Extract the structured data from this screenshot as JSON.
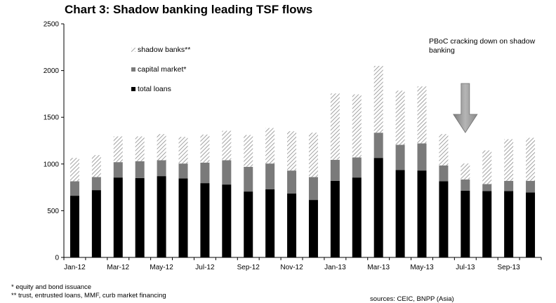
{
  "title": "Chart 3: Shadow banking leading TSF flows",
  "chart_data": {
    "type": "bar",
    "stacked": true,
    "categories": [
      "Jan-12",
      "Feb-12",
      "Mar-12",
      "Apr-12",
      "May-12",
      "Jun-12",
      "Jul-12",
      "Aug-12",
      "Sep-12",
      "Oct-12",
      "Nov-12",
      "Dec-12",
      "Jan-13",
      "Feb-13",
      "Mar-13",
      "Apr-13",
      "May-13",
      "Jun-13",
      "Jul-13",
      "Aug-13",
      "Sep-13",
      "Oct-13"
    ],
    "x_tick_labels": [
      "Jan-12",
      "Mar-12",
      "May-12",
      "Jul-12",
      "Sep-12",
      "Nov-12",
      "Jan-13",
      "Mar-13",
      "May-13",
      "Jul-13",
      "Sep-13"
    ],
    "series": [
      {
        "name": "total loans",
        "color": "#000000",
        "pattern": "solid",
        "values": [
          660,
          720,
          855,
          850,
          870,
          845,
          795,
          780,
          705,
          730,
          685,
          615,
          820,
          855,
          1065,
          935,
          930,
          815,
          715,
          710,
          710,
          695
        ]
      },
      {
        "name": "capital market*",
        "color": "#7a7a7a",
        "pattern": "solid",
        "values": [
          155,
          140,
          165,
          180,
          170,
          160,
          220,
          260,
          265,
          275,
          245,
          245,
          225,
          215,
          270,
          270,
          290,
          170,
          120,
          75,
          110,
          125
        ]
      },
      {
        "name": "shadow banks**",
        "color": "#9a9a9a",
        "pattern": "hatched",
        "values": [
          250,
          235,
          275,
          265,
          280,
          285,
          300,
          315,
          340,
          380,
          420,
          475,
          710,
          675,
          715,
          580,
          610,
          335,
          170,
          360,
          445,
          460
        ]
      }
    ],
    "yticks": [
      0,
      500,
      1000,
      1500,
      2000,
      2500
    ],
    "ylim": [
      0,
      2500
    ],
    "grid": false,
    "legend_position": "top-left",
    "annotation": {
      "lines": [
        "PBoC cracking down on shadow",
        "banking"
      ],
      "arrow": "down-arrow-icon",
      "points_to": "Jul-13"
    }
  },
  "footnotes": {
    "note1": "* equity and bond issuance",
    "note2": "** trust, entrusted loans, MMF, curb market financing",
    "source": "sources: CEIC, BNPP (Asia)"
  }
}
